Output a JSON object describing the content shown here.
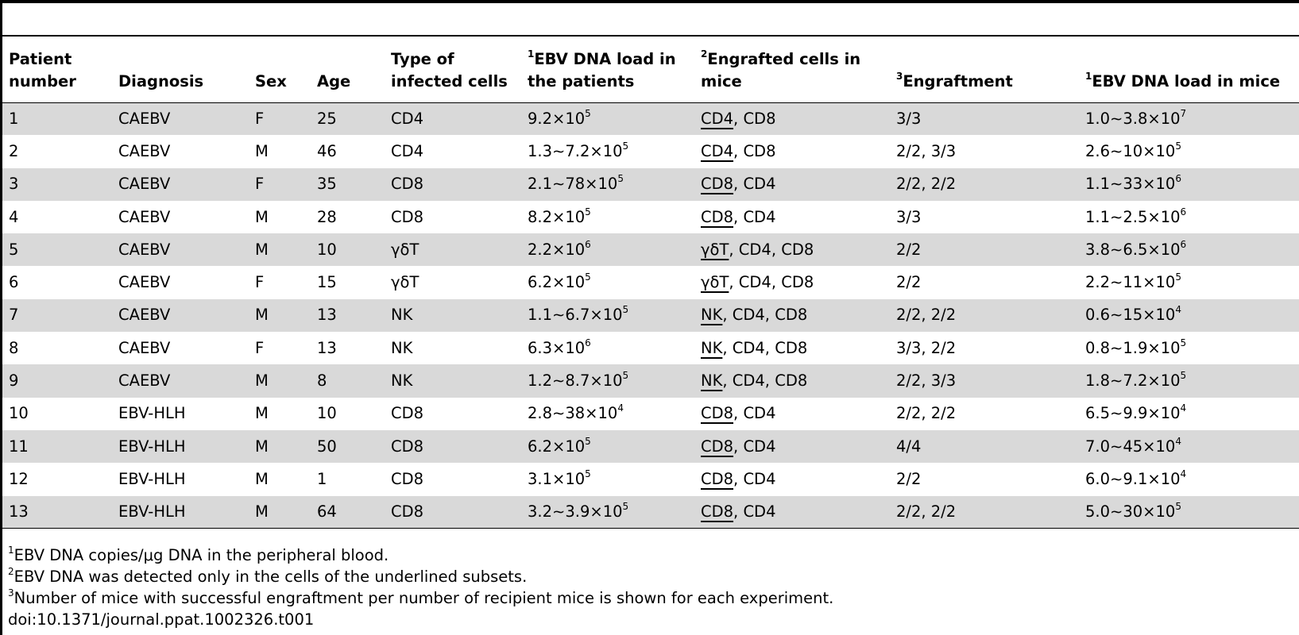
{
  "table": {
    "headers": [
      {
        "sup": "",
        "text": "Patient number"
      },
      {
        "sup": "",
        "text": "Diagnosis"
      },
      {
        "sup": "",
        "text": "Sex"
      },
      {
        "sup": "",
        "text": "Age"
      },
      {
        "sup": "",
        "text": "Type of infected cells"
      },
      {
        "sup": "1",
        "text": "EBV DNA load in the patients"
      },
      {
        "sup": "2",
        "text": "Engrafted cells in mice"
      },
      {
        "sup": "3",
        "text": "Engraftment"
      },
      {
        "sup": "1",
        "text": "EBV DNA load in mice"
      }
    ],
    "rows": [
      {
        "num": "1",
        "diagnosis": "CAEBV",
        "sex": "F",
        "age": "25",
        "cell_type": "CD4",
        "load_patient": {
          "base": "9.2×10",
          "exp": "5"
        },
        "engrafted": {
          "underlined": "CD4",
          "rest": ", CD8"
        },
        "engraftment": "3/3",
        "load_mice": {
          "base": "1.0∼3.8×10",
          "exp": "7"
        }
      },
      {
        "num": "2",
        "diagnosis": "CAEBV",
        "sex": "M",
        "age": "46",
        "cell_type": "CD4",
        "load_patient": {
          "base": "1.3∼7.2×10",
          "exp": "5"
        },
        "engrafted": {
          "underlined": "CD4",
          "rest": ", CD8"
        },
        "engraftment": "2/2, 3/3",
        "load_mice": {
          "base": "2.6∼10×10",
          "exp": "5"
        }
      },
      {
        "num": "3",
        "diagnosis": "CAEBV",
        "sex": "F",
        "age": "35",
        "cell_type": "CD8",
        "load_patient": {
          "base": "2.1∼78×10",
          "exp": "5"
        },
        "engrafted": {
          "underlined": "CD8",
          "rest": ", CD4"
        },
        "engraftment": "2/2, 2/2",
        "load_mice": {
          "base": "1.1∼33×10",
          "exp": "6"
        }
      },
      {
        "num": "4",
        "diagnosis": "CAEBV",
        "sex": "M",
        "age": "28",
        "cell_type": "CD8",
        "load_patient": {
          "base": "8.2×10",
          "exp": "5"
        },
        "engrafted": {
          "underlined": "CD8",
          "rest": ", CD4"
        },
        "engraftment": "3/3",
        "load_mice": {
          "base": "1.1∼2.5×10",
          "exp": "6"
        }
      },
      {
        "num": "5",
        "diagnosis": "CAEBV",
        "sex": "M",
        "age": "10",
        "cell_type": "γδT",
        "load_patient": {
          "base": "2.2×10",
          "exp": "6"
        },
        "engrafted": {
          "underlined": "γδT",
          "rest": ", CD4, CD8"
        },
        "engraftment": "2/2",
        "load_mice": {
          "base": "3.8∼6.5×10",
          "exp": "6"
        }
      },
      {
        "num": "6",
        "diagnosis": "CAEBV",
        "sex": "F",
        "age": "15",
        "cell_type": "γδT",
        "load_patient": {
          "base": "6.2×10",
          "exp": "5"
        },
        "engrafted": {
          "underlined": "γδT",
          "rest": ", CD4, CD8"
        },
        "engraftment": "2/2",
        "load_mice": {
          "base": "2.2∼11×10",
          "exp": "5"
        }
      },
      {
        "num": "7",
        "diagnosis": "CAEBV",
        "sex": "M",
        "age": "13",
        "cell_type": "NK",
        "load_patient": {
          "base": "1.1∼6.7×10",
          "exp": "5"
        },
        "engrafted": {
          "underlined": "NK",
          "rest": ", CD4, CD8"
        },
        "engraftment": "2/2, 2/2",
        "load_mice": {
          "base": "0.6∼15×10",
          "exp": "4"
        }
      },
      {
        "num": "8",
        "diagnosis": "CAEBV",
        "sex": "F",
        "age": "13",
        "cell_type": "NK",
        "load_patient": {
          "base": "6.3×10",
          "exp": "6"
        },
        "engrafted": {
          "underlined": "NK",
          "rest": ", CD4, CD8"
        },
        "engraftment": "3/3, 2/2",
        "load_mice": {
          "base": "0.8∼1.9×10",
          "exp": "5"
        }
      },
      {
        "num": "9",
        "diagnosis": "CAEBV",
        "sex": "M",
        "age": "8",
        "cell_type": "NK",
        "load_patient": {
          "base": "1.2∼8.7×10",
          "exp": "5"
        },
        "engrafted": {
          "underlined": "NK",
          "rest": ", CD4, CD8"
        },
        "engraftment": "2/2, 3/3",
        "load_mice": {
          "base": "1.8∼7.2×10",
          "exp": "5"
        }
      },
      {
        "num": "10",
        "diagnosis": "EBV-HLH",
        "sex": "M",
        "age": "10",
        "cell_type": "CD8",
        "load_patient": {
          "base": "2.8∼38×10",
          "exp": "4"
        },
        "engrafted": {
          "underlined": "CD8",
          "rest": ", CD4"
        },
        "engraftment": "2/2, 2/2",
        "load_mice": {
          "base": "6.5∼9.9×10",
          "exp": "4"
        }
      },
      {
        "num": "11",
        "diagnosis": "EBV-HLH",
        "sex": "M",
        "age": "50",
        "cell_type": "CD8",
        "load_patient": {
          "base": "6.2×10",
          "exp": "5"
        },
        "engrafted": {
          "underlined": "CD8",
          "rest": ", CD4"
        },
        "engraftment": "4/4",
        "load_mice": {
          "base": "7.0∼45×10",
          "exp": "4"
        }
      },
      {
        "num": "12",
        "diagnosis": "EBV-HLH",
        "sex": "M",
        "age": "1",
        "cell_type": "CD8",
        "load_patient": {
          "base": "3.1×10",
          "exp": "5"
        },
        "engrafted": {
          "underlined": "CD8",
          "rest": ", CD4"
        },
        "engraftment": "2/2",
        "load_mice": {
          "base": "6.0∼9.1×10",
          "exp": "4"
        }
      },
      {
        "num": "13",
        "diagnosis": "EBV-HLH",
        "sex": "M",
        "age": "64",
        "cell_type": "CD8",
        "load_patient": {
          "base": "3.2∼3.9×10",
          "exp": "5"
        },
        "engrafted": {
          "underlined": "CD8",
          "rest": ", CD4"
        },
        "engraftment": "2/2, 2/2",
        "load_mice": {
          "base": "5.0∼30×10",
          "exp": "5"
        }
      }
    ]
  },
  "footnotes": [
    {
      "sup": "1",
      "text": "EBV DNA copies/μg DNA in the peripheral blood."
    },
    {
      "sup": "2",
      "text": "EBV DNA was detected only in the cells of the underlined subsets."
    },
    {
      "sup": "3",
      "text": "Number of mice with successful engraftment per number of recipient mice is shown for each experiment."
    }
  ],
  "doi": "doi:10.1371/journal.ppat.1002326.t001",
  "colors": {
    "row_shade": "#d9d9d9",
    "rule": "#000000"
  }
}
